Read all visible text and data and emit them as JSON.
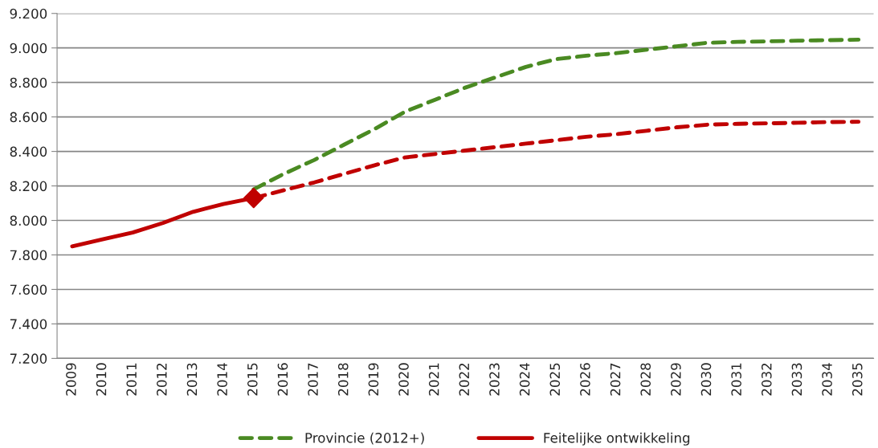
{
  "chart_data": {
    "type": "line",
    "categories": [
      "2009",
      "2010",
      "2011",
      "2012",
      "2013",
      "2014",
      "2015",
      "2016",
      "2017",
      "2018",
      "2019",
      "2020",
      "2021",
      "2022",
      "2023",
      "2024",
      "2025",
      "2026",
      "2027",
      "2028",
      "2029",
      "2030",
      "2031",
      "2032",
      "2033",
      "2034",
      "2035"
    ],
    "series": [
      {
        "name": "Provincie (2012+)",
        "color": "#4a8a22",
        "line_style": "dashed",
        "values": [
          null,
          null,
          null,
          null,
          null,
          null,
          8180,
          8270,
          8350,
          8440,
          8530,
          8630,
          8700,
          8770,
          8830,
          8890,
          8935,
          8955,
          8970,
          8990,
          9010,
          9030,
          9035,
          9038,
          9042,
          9045,
          9048
        ]
      },
      {
        "color": "#c00000",
        "line_style": "dashed",
        "values": [
          null,
          null,
          null,
          null,
          null,
          null,
          8130,
          8175,
          8220,
          8270,
          8320,
          8365,
          8385,
          8405,
          8425,
          8445,
          8465,
          8485,
          8500,
          8520,
          8540,
          8555,
          8560,
          8563,
          8566,
          8570,
          8572
        ]
      },
      {
        "name": "Feitelijke ontwikkeling",
        "color": "#c00000",
        "line_style": "solid",
        "values": [
          7850,
          7890,
          7930,
          7985,
          8050,
          8095,
          8130,
          null,
          null,
          null,
          null,
          null,
          null,
          null,
          null,
          null,
          null,
          null,
          null,
          null,
          null,
          null,
          null,
          null,
          null,
          null,
          null
        ]
      },
      {
        "type": "scatter",
        "marker": "diamond",
        "color": "#c00000",
        "values": [
          null,
          null,
          null,
          null,
          null,
          null,
          8130,
          null,
          null,
          null,
          null,
          null,
          null,
          null,
          null,
          null,
          null,
          null,
          null,
          null,
          null,
          null,
          null,
          null,
          null,
          null,
          null
        ]
      }
    ],
    "ylim": [
      7200,
      9200
    ],
    "yticks": [
      {
        "value": 7200,
        "label": "7.200"
      },
      {
        "value": 7400,
        "label": "7.400"
      },
      {
        "value": 7600,
        "label": "7.600"
      },
      {
        "value": 7800,
        "label": "7.800"
      },
      {
        "value": 8000,
        "label": "8.000"
      },
      {
        "value": 8200,
        "label": "8.200"
      },
      {
        "value": 8400,
        "label": "8.400"
      },
      {
        "value": 8600,
        "label": "8.600"
      },
      {
        "value": 8800,
        "label": "8.800"
      },
      {
        "value": 9000,
        "label": "9.000"
      },
      {
        "value": 9200,
        "label": "9.200"
      }
    ],
    "grid": "y",
    "legend": "bottom"
  }
}
